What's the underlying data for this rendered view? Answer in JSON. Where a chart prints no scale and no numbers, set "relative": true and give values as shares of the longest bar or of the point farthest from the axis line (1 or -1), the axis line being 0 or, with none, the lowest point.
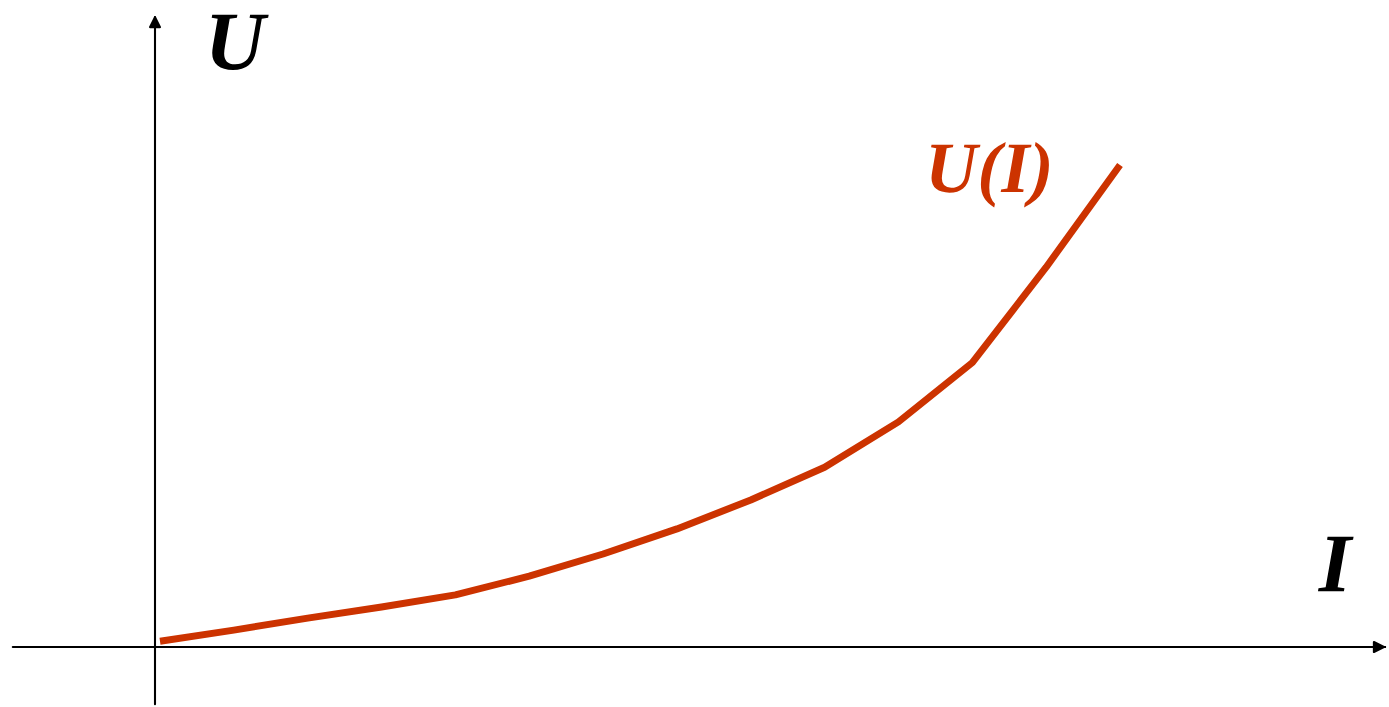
{
  "chart_data": {
    "type": "line",
    "relative": true,
    "xlabel": "I",
    "ylabel": "U",
    "categories": [
      null,
      null,
      null,
      null,
      null,
      null,
      null,
      null,
      null,
      null,
      null,
      null,
      null,
      null
    ],
    "series": [
      {
        "name": "U(I)",
        "color": "#cc3300",
        "values": [
          0.012,
          0.035,
          0.06,
          0.083,
          0.108,
          0.147,
          0.193,
          0.245,
          0.305,
          0.373,
          0.467,
          0.59,
          0.788,
          1.0
        ]
      }
    ],
    "grid": false,
    "legend": false,
    "marker": "none",
    "line_style": "solid"
  }
}
